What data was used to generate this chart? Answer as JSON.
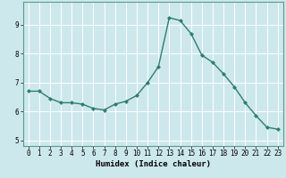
{
  "x": [
    0,
    1,
    2,
    3,
    4,
    5,
    6,
    7,
    8,
    9,
    10,
    11,
    12,
    13,
    14,
    15,
    16,
    17,
    18,
    19,
    20,
    21,
    22,
    23
  ],
  "y": [
    6.7,
    6.7,
    6.45,
    6.3,
    6.3,
    6.25,
    6.1,
    6.05,
    6.25,
    6.35,
    6.55,
    7.0,
    7.55,
    9.25,
    9.15,
    8.7,
    7.95,
    7.7,
    7.3,
    6.85,
    6.3,
    5.85,
    5.45,
    5.38
  ],
  "line_color": "#2e7d6e",
  "marker": "D",
  "marker_size": 2.0,
  "linewidth": 1.0,
  "xlabel": "Humidex (Indice chaleur)",
  "xlim": [
    -0.5,
    23.5
  ],
  "ylim": [
    4.8,
    9.8
  ],
  "yticks": [
    5,
    6,
    7,
    8,
    9
  ],
  "xticks": [
    0,
    1,
    2,
    3,
    4,
    5,
    6,
    7,
    8,
    9,
    10,
    11,
    12,
    13,
    14,
    15,
    16,
    17,
    18,
    19,
    20,
    21,
    22,
    23
  ],
  "bg_color": "#cde8ed",
  "grid_color": "#ffffff",
  "tick_fontsize": 5.5,
  "xlabel_fontsize": 6.5,
  "spine_color": "#5a9a8a"
}
